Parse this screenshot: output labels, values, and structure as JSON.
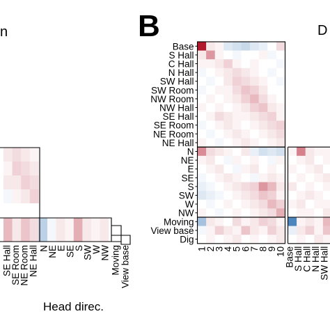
{
  "panel_b_label": "B",
  "left_title_fragment": "n",
  "right_title_fragment": "D",
  "left_xlabel_fragment": "Head direc.",
  "chart_data": [
    {
      "type": "heatmap",
      "panel": "partial-left",
      "col_labels": [
        "SE Hall",
        "SE Room",
        "NE Room",
        "NE Hall",
        "N",
        "NE",
        "E",
        "SE",
        "S",
        "SW",
        "W",
        "NW",
        "Moving",
        "View base"
      ],
      "approx_values": [
        [
          0.1,
          0.15,
          0.1,
          0.05
        ],
        [
          0.05,
          0.2,
          0.15,
          0.1
        ],
        [
          0.1,
          0.1,
          0.2,
          0.15
        ],
        [
          -0.05,
          0.05,
          0.1,
          0.2
        ],
        [
          0.3,
          0.1,
          0.25,
          0.15,
          -0.3,
          -0.05,
          0.1,
          0.05,
          0.35,
          0.1,
          0.05,
          0.1,
          0.0,
          0.0
        ]
      ],
      "color_scale": [
        "#2166ac",
        "#ffffff",
        "#b2182b"
      ]
    },
    {
      "type": "heatmap",
      "panel": "B",
      "row_labels": [
        "Base",
        "S Hall",
        "C Hall",
        "N Hall",
        "SW Hall",
        "SW Room",
        "NW Room",
        "NW Hall",
        "SE Hall",
        "SE Room",
        "NE Room",
        "NE Hall",
        "N",
        "NE",
        "E",
        "SE",
        "S",
        "SW",
        "W",
        "NW",
        "Moving",
        "View base",
        "Dig"
      ],
      "col_labels": [
        "1",
        "2",
        "3",
        "4",
        "5",
        "6",
        "7",
        "8",
        "9",
        "10",
        "Base",
        "S Hall",
        "C Hall",
        "N Hall",
        "SW Hall"
      ],
      "values": [
        [
          1.0,
          0.1,
          0.05,
          -0.15,
          -0.2,
          -0.25,
          -0.15,
          -0.1,
          0.0,
          0.15
        ],
        [
          0.1,
          0.45,
          0.05,
          0.0,
          -0.05,
          0.0,
          0.0,
          0.05,
          -0.05,
          0.0
        ],
        [
          0.05,
          0.05,
          0.1,
          0.2,
          0.05,
          0.0,
          0.05,
          0.0,
          0.0,
          -0.05
        ],
        [
          -0.05,
          0.0,
          0.05,
          0.1,
          0.15,
          0.1,
          0.05,
          0.0,
          -0.05,
          0.0
        ],
        [
          0.0,
          -0.05,
          0.0,
          0.1,
          0.2,
          0.15,
          0.1,
          0.05,
          0.0,
          -0.05
        ],
        [
          -0.05,
          0.0,
          0.05,
          0.05,
          0.15,
          0.25,
          0.2,
          0.1,
          0.0,
          0.0
        ],
        [
          0.0,
          0.05,
          0.0,
          0.05,
          0.1,
          0.2,
          0.3,
          0.15,
          0.05,
          0.0
        ],
        [
          0.05,
          0.0,
          0.05,
          0.0,
          0.05,
          0.1,
          0.2,
          0.25,
          0.1,
          0.05
        ],
        [
          0.0,
          0.05,
          0.15,
          0.1,
          0.05,
          0.05,
          0.1,
          0.15,
          0.2,
          0.05
        ],
        [
          -0.05,
          0.0,
          0.05,
          0.1,
          0.05,
          0.0,
          0.05,
          0.1,
          0.15,
          0.2
        ],
        [
          0.0,
          -0.05,
          0.0,
          0.05,
          0.1,
          0.05,
          0.0,
          0.05,
          0.1,
          0.15
        ],
        [
          0.05,
          0.0,
          -0.05,
          0.0,
          0.05,
          0.1,
          0.05,
          0.0,
          0.05,
          0.1
        ],
        [
          0.5,
          0.15,
          0.1,
          0.05,
          0.0,
          0.1,
          -0.1,
          -0.2,
          -0.15,
          -0.2
        ],
        [
          0.05,
          0.1,
          0.0,
          -0.05,
          0.05,
          0.0,
          0.05,
          0.0,
          -0.05,
          0.05
        ],
        [
          0.0,
          0.05,
          0.1,
          0.0,
          -0.05,
          0.05,
          0.1,
          0.0,
          0.05,
          0.0
        ],
        [
          -0.05,
          0.0,
          0.05,
          0.1,
          0.05,
          0.0,
          -0.05,
          0.05,
          0.1,
          0.05
        ],
        [
          -0.1,
          -0.05,
          0.0,
          0.05,
          0.1,
          0.15,
          0.2,
          0.45,
          0.3,
          0.1
        ],
        [
          -0.15,
          -0.1,
          -0.05,
          0.0,
          0.05,
          0.1,
          0.15,
          0.25,
          0.2,
          0.05
        ],
        [
          0.0,
          -0.05,
          0.0,
          0.05,
          0.0,
          0.05,
          0.1,
          0.15,
          0.3,
          0.2
        ],
        [
          0.05,
          0.0,
          -0.05,
          0.0,
          0.05,
          0.0,
          0.05,
          0.1,
          0.15,
          0.35
        ],
        [
          -0.4,
          0.1,
          0.05,
          0.0,
          0.15,
          0.05,
          0.1,
          0.2,
          0.15,
          0.05
        ],
        [
          -0.05,
          0.05,
          0.2,
          0.1,
          0.05,
          0.25,
          0.1,
          0.05,
          0.2,
          0.1
        ],
        [
          0.0,
          0.05,
          0.0,
          0.05,
          0.1,
          0.0,
          0.05,
          0.0,
          0.05,
          0.1
        ]
      ],
      "extra_col_values": [
        [
          0.0,
          0.0,
          0.0,
          0.0,
          0.0
        ],
        [
          0.0,
          0.0,
          0.0,
          0.0,
          0.0
        ],
        [
          0.0,
          0.0,
          0.0,
          0.0,
          0.0
        ],
        [
          0.0,
          0.0,
          0.0,
          0.0,
          0.0
        ],
        [
          0.0,
          0.0,
          0.0,
          0.0,
          0.0
        ],
        [
          0.0,
          0.0,
          0.0,
          0.0,
          0.0
        ],
        [
          0.0,
          0.0,
          0.0,
          0.0,
          0.0
        ],
        [
          0.0,
          0.0,
          0.0,
          0.0,
          0.0
        ],
        [
          0.0,
          0.0,
          0.0,
          0.0,
          0.0
        ],
        [
          0.0,
          0.0,
          0.0,
          0.0,
          0.0
        ],
        [
          0.0,
          0.0,
          0.0,
          0.0,
          0.0
        ],
        [
          0.0,
          0.0,
          0.0,
          0.0,
          0.0
        ],
        [
          0.05,
          0.55,
          0.1,
          0.05,
          0.05
        ],
        [
          0.0,
          0.05,
          0.1,
          0.0,
          0.05
        ],
        [
          0.05,
          0.0,
          0.05,
          0.1,
          0.0
        ],
        [
          0.0,
          0.05,
          0.0,
          0.05,
          0.1
        ],
        [
          0.1,
          0.0,
          0.05,
          0.0,
          0.05
        ],
        [
          0.0,
          0.05,
          0.1,
          0.05,
          0.0
        ],
        [
          0.05,
          0.1,
          0.0,
          0.05,
          0.05
        ],
        [
          0.0,
          0.05,
          0.05,
          0.0,
          0.1
        ],
        [
          -0.8,
          0.05,
          0.1,
          0.05,
          0.3
        ],
        [
          -0.1,
          0.1,
          0.2,
          0.05,
          0.25
        ],
        [
          0.0,
          0.05,
          0.0,
          0.1,
          0.05
        ]
      ],
      "color_scale": [
        "#2166ac",
        "#ffffff",
        "#b2182b"
      ]
    }
  ]
}
